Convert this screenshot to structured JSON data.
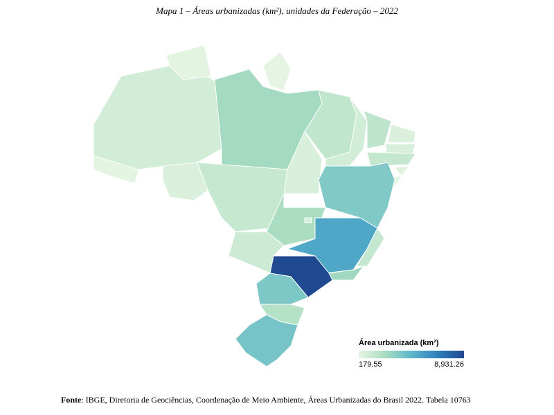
{
  "map": {
    "title": "Mapa 1 – Áreas urbanizadas (km²), unidades da Federação – 2022",
    "legend_title": "Área urbanizada (km²)",
    "scale_min": 179.55,
    "scale_max": {
      "value": 8931.26,
      "label": "8,931.26"
    },
    "colors": [
      "#e6f5e3",
      "#a8dcc0",
      "#5cb8cb",
      "#2f7fbd",
      "#1f4a91"
    ],
    "state_values": [
      900,
      300,
      180,
      2500,
      300,
      600,
      1300,
      700,
      1500,
      900,
      1600,
      600,
      700,
      1400,
      400,
      300,
      3500,
      2300,
      700,
      1100,
      5200,
      1400,
      2600,
      8931.26,
      3600,
      1900,
      3800
    ],
    "source_label": "Fonte",
    "source": ": IBGE, Diretoria de Geociências, Coordenação de Meio Ambiente, Áreas Urbanizadas do Brasil 2022. Tabela 10763"
  }
}
